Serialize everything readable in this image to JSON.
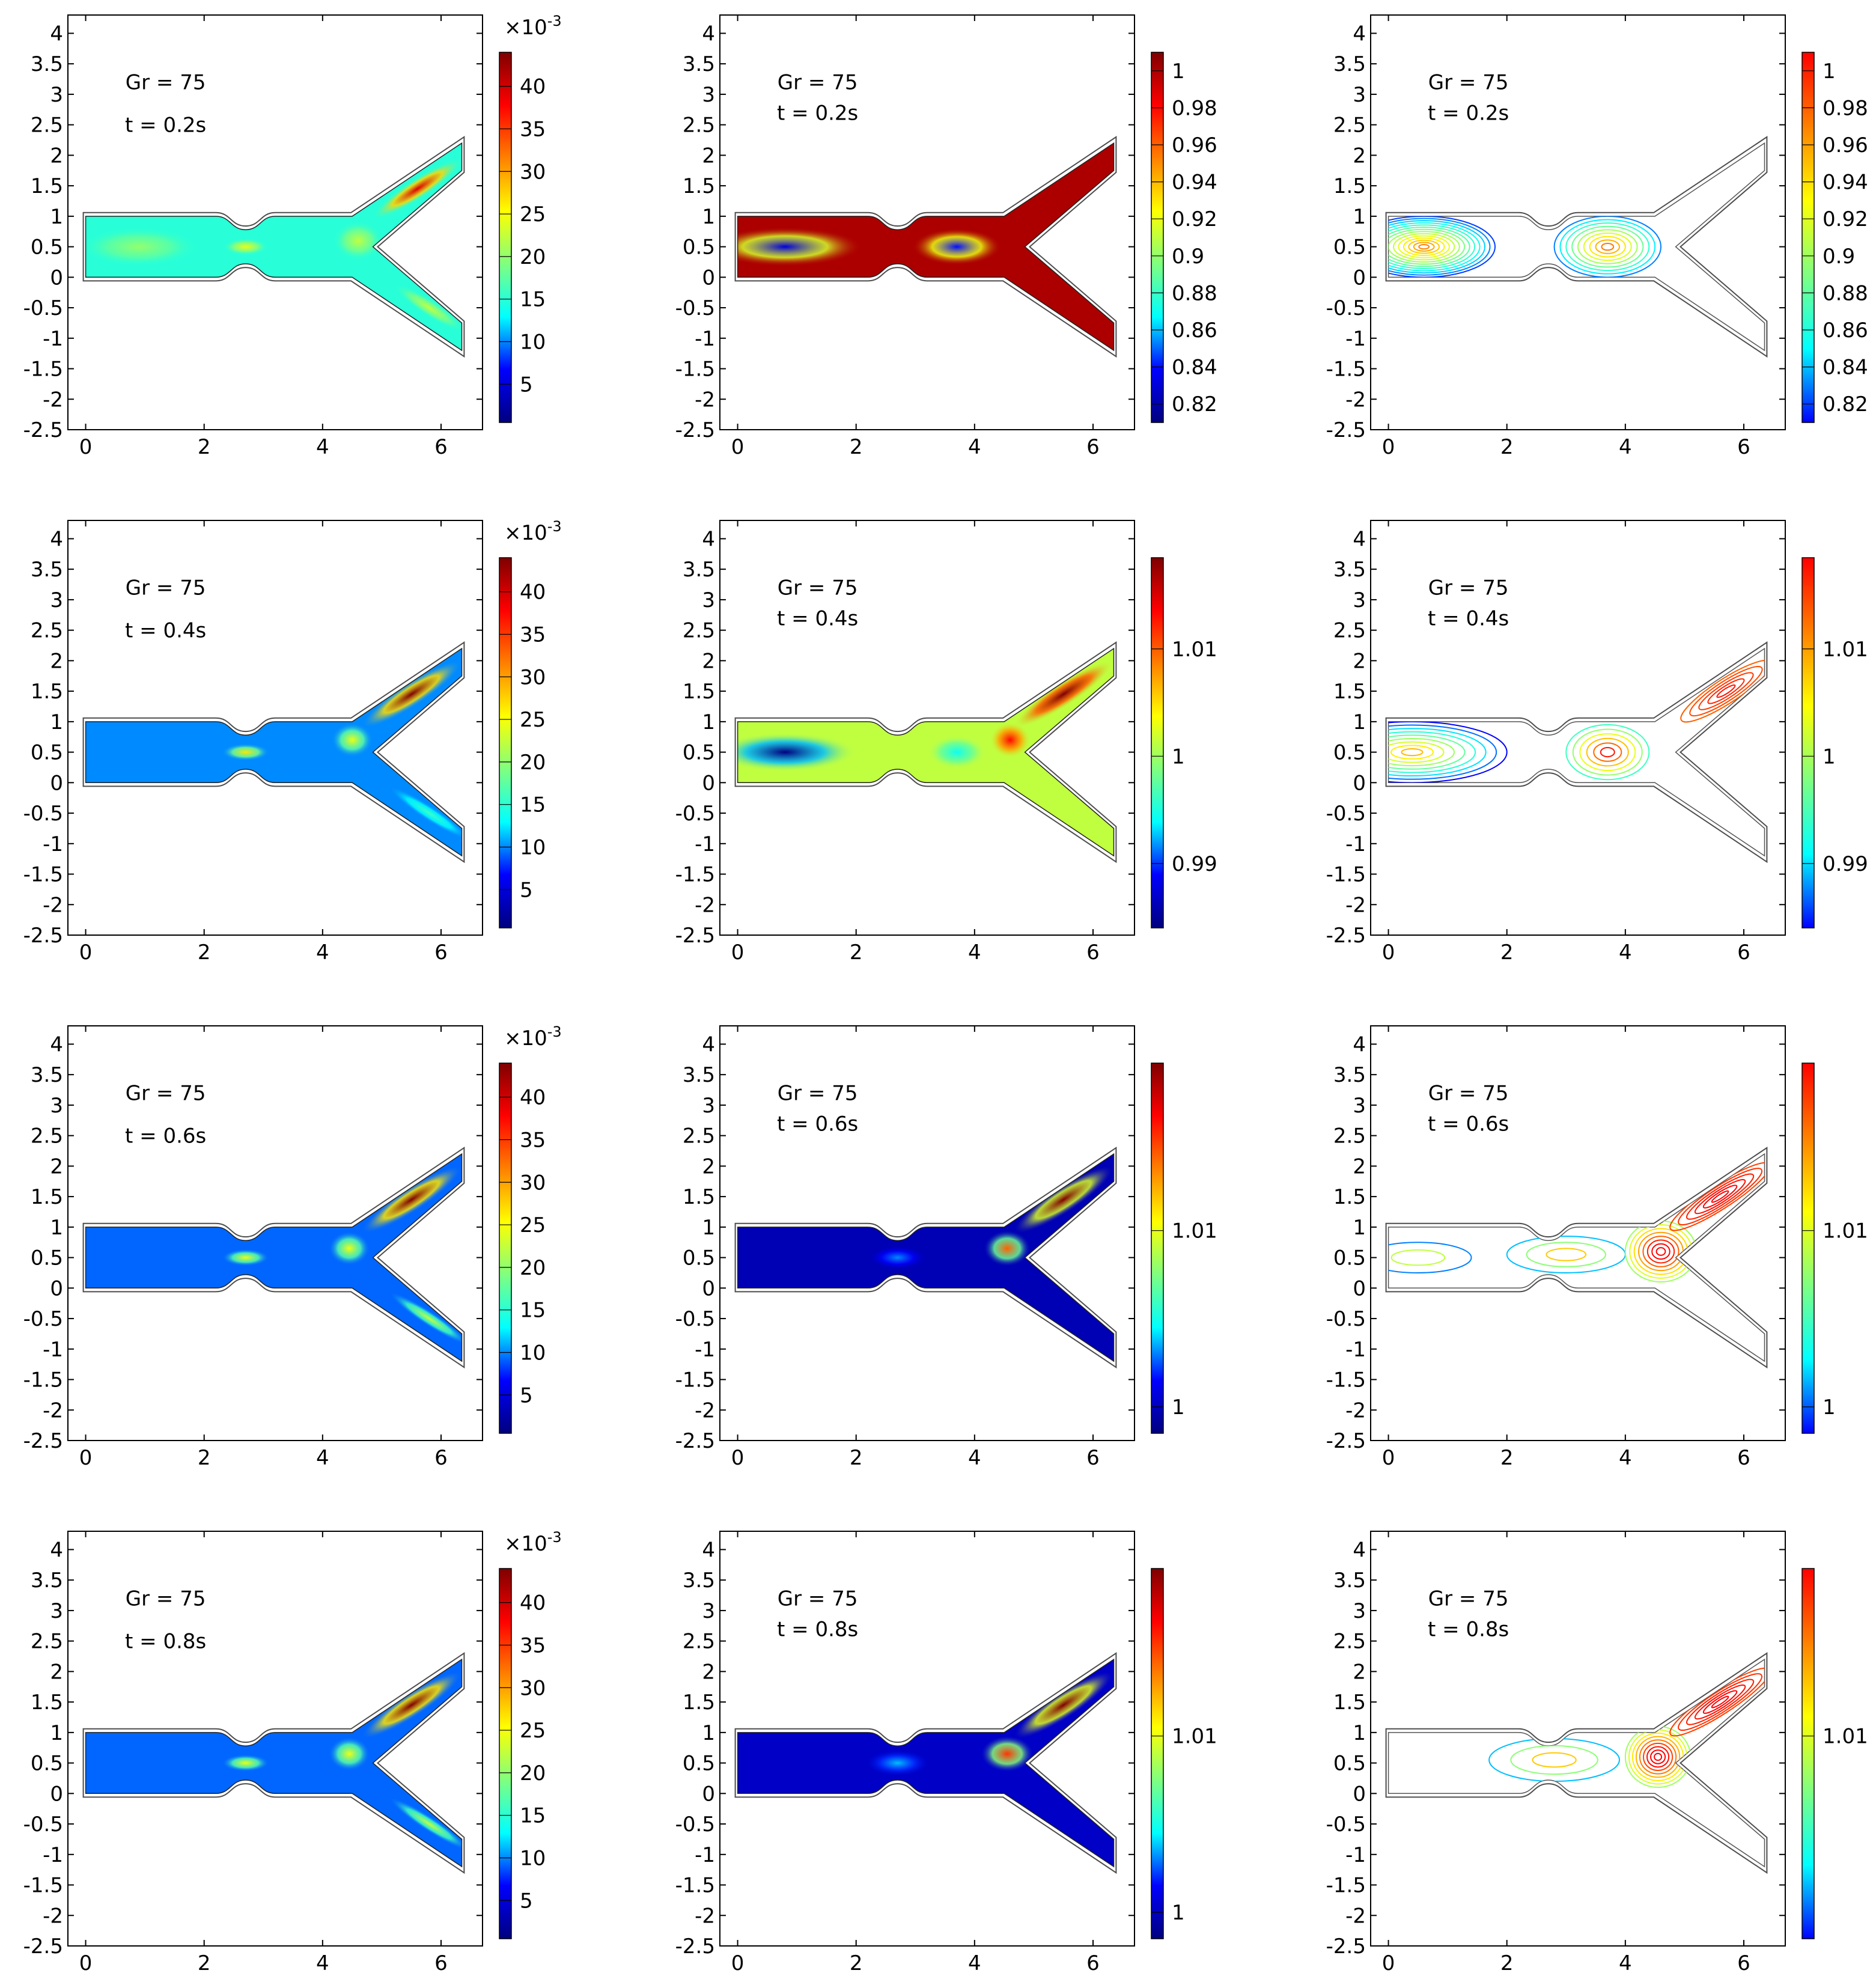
{
  "figure": {
    "rows": [
      {
        "time_label": "t = 0.2s"
      },
      {
        "time_label": "t = 0.4s"
      },
      {
        "time_label": "t = 0.6s"
      },
      {
        "time_label": "t = 0.8s"
      }
    ],
    "grashof_label": "Gr = 75",
    "columns": [
      {
        "kind": "surface",
        "field": "velocity"
      },
      {
        "kind": "surface",
        "field": "scalar"
      },
      {
        "kind": "contour",
        "field": "scalar"
      }
    ]
  },
  "colormap": [
    "#00007f",
    "#0000ff",
    "#00ffff",
    "#80ff80",
    "#ffff00",
    "#ff8000",
    "#ff0000",
    "#7f0000"
  ],
  "colormap_contour": [
    "#0000ff",
    "#00ffff",
    "#80ff80",
    "#ffff00",
    "#ff8000",
    "#ff0000"
  ],
  "colors": {
    "frame": "#000000",
    "wall": "#4d4d4d"
  },
  "chart_data": [
    {
      "type": "heatmap",
      "panel": "r1c1",
      "title": "Gr = 75",
      "subtitle": "t = 0.2s",
      "xlim": [
        -0.3,
        6.7
      ],
      "ylim": [
        -2.5,
        4.3
      ],
      "xticks": [
        "0",
        "2",
        "4",
        "6"
      ],
      "yticks": [
        "4",
        "3.5",
        "3",
        "2.5",
        "2",
        "1.5",
        "1",
        "0.5",
        "0",
        "-0.5",
        "-1",
        "-1.5",
        "-2",
        "-2.5"
      ],
      "colorbar": {
        "ticks": [
          "40",
          "35",
          "30",
          "25",
          "20",
          "15",
          "10",
          "5"
        ],
        "range": [
          0.5,
          44
        ],
        "multiplier": "×10",
        "exponent": "-3"
      }
    },
    {
      "type": "heatmap",
      "panel": "r1c2",
      "title": "Gr = 75",
      "subtitle": "t = 0.2s",
      "xlim": [
        -0.3,
        6.7
      ],
      "ylim": [
        -2.5,
        4.3
      ],
      "xticks": [
        "0",
        "2",
        "4",
        "6"
      ],
      "yticks": [
        "4",
        "3.5",
        "3",
        "2.5",
        "2",
        "1.5",
        "1",
        "0.5",
        "0",
        "-0.5",
        "-1",
        "-1.5",
        "-2",
        "-2.5"
      ],
      "colorbar": {
        "ticks": [
          "1",
          "0.98",
          "0.96",
          "0.94",
          "0.92",
          "0.9",
          "0.88",
          "0.86",
          "0.84",
          "0.82"
        ],
        "range": [
          0.81,
          1.01
        ]
      }
    },
    {
      "type": "heatmap",
      "panel": "r1c3",
      "title": "Gr = 75",
      "subtitle": "t = 0.2s",
      "xlim": [
        -0.3,
        6.7
      ],
      "ylim": [
        -2.5,
        4.3
      ],
      "xticks": [
        "0",
        "2",
        "4",
        "6"
      ],
      "yticks": [
        "4",
        "3.5",
        "3",
        "2.5",
        "2",
        "1.5",
        "1",
        "0.5",
        "0",
        "-0.5",
        "-1",
        "-1.5",
        "-2",
        "-2.5"
      ],
      "colorbar": {
        "ticks": [
          "1",
          "0.98",
          "0.96",
          "0.94",
          "0.92",
          "0.9",
          "0.88",
          "0.86",
          "0.84",
          "0.82"
        ],
        "range": [
          0.81,
          1.01
        ]
      }
    },
    {
      "type": "heatmap",
      "panel": "r2c1",
      "title": "Gr = 75",
      "subtitle": "t = 0.4s",
      "xlim": [
        -0.3,
        6.7
      ],
      "ylim": [
        -2.5,
        4.3
      ],
      "xticks": [
        "0",
        "2",
        "4",
        "6"
      ],
      "yticks": [
        "4",
        "3.5",
        "3",
        "2.5",
        "2",
        "1.5",
        "1",
        "0.5",
        "0",
        "-0.5",
        "-1",
        "-1.5",
        "-2",
        "-2.5"
      ],
      "colorbar": {
        "ticks": [
          "40",
          "35",
          "30",
          "25",
          "20",
          "15",
          "10",
          "5"
        ],
        "range": [
          0.5,
          44
        ],
        "multiplier": "×10",
        "exponent": "-3"
      }
    },
    {
      "type": "heatmap",
      "panel": "r2c2",
      "title": "Gr = 75",
      "subtitle": "t = 0.4s",
      "xlim": [
        -0.3,
        6.7
      ],
      "ylim": [
        -2.5,
        4.3
      ],
      "xticks": [
        "0",
        "2",
        "4",
        "6"
      ],
      "yticks": [
        "4",
        "3.5",
        "3",
        "2.5",
        "2",
        "1.5",
        "1",
        "0.5",
        "0",
        "-0.5",
        "-1",
        "-1.5",
        "-2",
        "-2.5"
      ],
      "colorbar": {
        "ticks": [
          "1.01",
          "1",
          "0.99"
        ],
        "range": [
          0.984,
          1.0185
        ]
      }
    },
    {
      "type": "heatmap",
      "panel": "r2c3",
      "title": "Gr = 75",
      "subtitle": "t = 0.4s",
      "xlim": [
        -0.3,
        6.7
      ],
      "ylim": [
        -2.5,
        4.3
      ],
      "xticks": [
        "0",
        "2",
        "4",
        "6"
      ],
      "yticks": [
        "4",
        "3.5",
        "3",
        "2.5",
        "2",
        "1.5",
        "1",
        "0.5",
        "0",
        "-0.5",
        "-1",
        "-1.5",
        "-2",
        "-2.5"
      ],
      "colorbar": {
        "ticks": [
          "1.01",
          "1",
          "0.99"
        ],
        "range": [
          0.984,
          1.0185
        ]
      }
    },
    {
      "type": "heatmap",
      "panel": "r3c1",
      "title": "Gr = 75",
      "subtitle": "t = 0.6s",
      "xlim": [
        -0.3,
        6.7
      ],
      "ylim": [
        -2.5,
        4.3
      ],
      "xticks": [
        "0",
        "2",
        "4",
        "6"
      ],
      "yticks": [
        "4",
        "3.5",
        "3",
        "2.5",
        "2",
        "1.5",
        "1",
        "0.5",
        "0",
        "-0.5",
        "-1",
        "-1.5",
        "-2",
        "-2.5"
      ],
      "colorbar": {
        "ticks": [
          "40",
          "35",
          "30",
          "25",
          "20",
          "15",
          "10",
          "5"
        ],
        "range": [
          0.5,
          44
        ],
        "multiplier": "×10",
        "exponent": "-3"
      }
    },
    {
      "type": "heatmap",
      "panel": "r3c2",
      "title": "Gr = 75",
      "subtitle": "t = 0.6s",
      "xlim": [
        -0.3,
        6.7
      ],
      "ylim": [
        -2.5,
        4.3
      ],
      "xticks": [
        "0",
        "2",
        "4",
        "6"
      ],
      "yticks": [
        "4",
        "3.5",
        "3",
        "2.5",
        "2",
        "1.5",
        "1",
        "0.5",
        "0",
        "-0.5",
        "-1",
        "-1.5",
        "-2",
        "-2.5"
      ],
      "colorbar": {
        "ticks": [
          "1.01",
          "1"
        ],
        "range": [
          0.9985,
          1.0195
        ]
      }
    },
    {
      "type": "heatmap",
      "panel": "r3c3",
      "title": "Gr = 75",
      "subtitle": "t = 0.6s",
      "xlim": [
        -0.3,
        6.7
      ],
      "ylim": [
        -2.5,
        4.3
      ],
      "xticks": [
        "0",
        "2",
        "4",
        "6"
      ],
      "yticks": [
        "4",
        "3.5",
        "3",
        "2.5",
        "2",
        "1.5",
        "1",
        "0.5",
        "0",
        "-0.5",
        "-1",
        "-1.5",
        "-2",
        "-2.5"
      ],
      "colorbar": {
        "ticks": [
          "1.01",
          "1"
        ],
        "range": [
          0.9985,
          1.0195
        ]
      }
    },
    {
      "type": "heatmap",
      "panel": "r4c1",
      "title": "Gr = 75",
      "subtitle": "t = 0.8s",
      "xlim": [
        -0.3,
        6.7
      ],
      "ylim": [
        -2.5,
        4.3
      ],
      "xticks": [
        "0",
        "2",
        "4",
        "6"
      ],
      "yticks": [
        "4",
        "3.5",
        "3",
        "2.5",
        "2",
        "1.5",
        "1",
        "0.5",
        "0",
        "-0.5",
        "-1",
        "-1.5",
        "-2",
        "-2.5"
      ],
      "colorbar": {
        "ticks": [
          "40",
          "35",
          "30",
          "25",
          "20",
          "15",
          "10",
          "5"
        ],
        "range": [
          0.5,
          44
        ],
        "multiplier": "×10",
        "exponent": "-3"
      }
    },
    {
      "type": "heatmap",
      "panel": "r4c2",
      "title": "Gr = 75",
      "subtitle": "t = 0.8s",
      "xlim": [
        -0.3,
        6.7
      ],
      "ylim": [
        -2.5,
        4.3
      ],
      "xticks": [
        "0",
        "2",
        "4",
        "6"
      ],
      "yticks": [
        "4",
        "3.5",
        "3",
        "2.5",
        "2",
        "1.5",
        "1",
        "0.5",
        "0",
        "-0.5",
        "-1",
        "-1.5",
        "-2",
        "-2.5"
      ],
      "colorbar": {
        "ticks": [
          "1.01",
          "1"
        ],
        "range": [
          0.9985,
          1.0195
        ]
      }
    },
    {
      "type": "heatmap",
      "panel": "r4c3",
      "title": "Gr = 75",
      "subtitle": "t = 0.8s",
      "xlim": [
        -0.3,
        6.7
      ],
      "ylim": [
        -2.5,
        4.3
      ],
      "xticks": [
        "0",
        "2",
        "4",
        "6"
      ],
      "yticks": [
        "4",
        "3.5",
        "3",
        "2.5",
        "2",
        "1.5",
        "1",
        "0.5",
        "0",
        "-0.5",
        "-1",
        "-1.5",
        "-2",
        "-2.5"
      ],
      "colorbar": {
        "ticks": [
          "1.01"
        ],
        "range": [
          0.9985,
          1.0195
        ]
      }
    }
  ]
}
